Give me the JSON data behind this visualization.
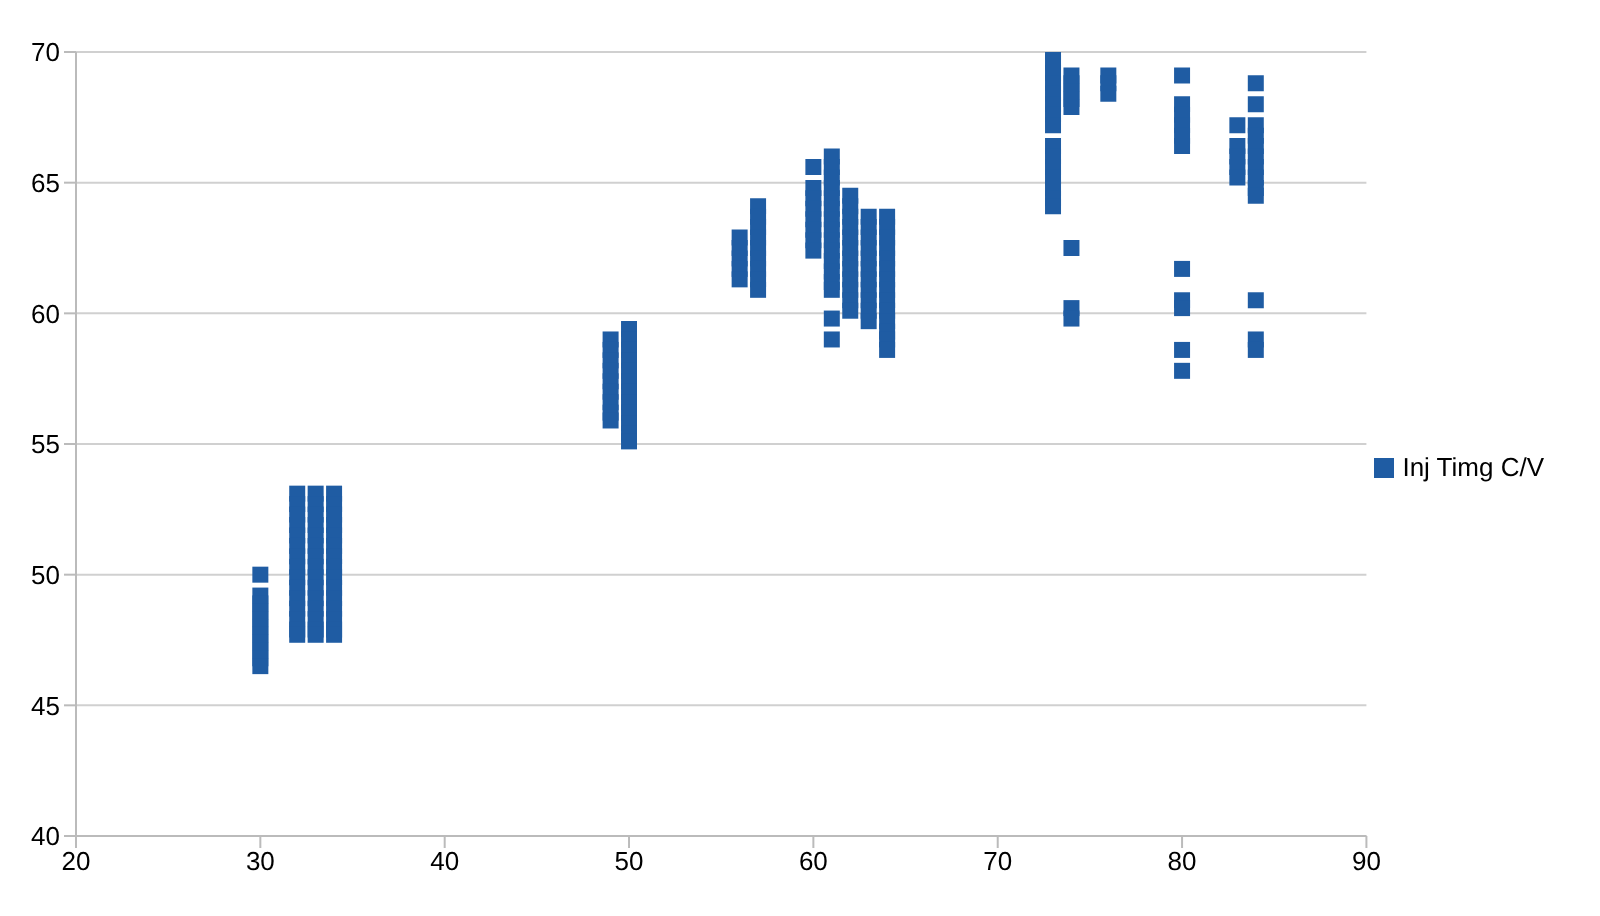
{
  "chart_data": {
    "type": "scatter",
    "xlim": [
      20,
      90
    ],
    "xticks": [
      20,
      30,
      40,
      50,
      60,
      70,
      80,
      90
    ],
    "ylim": [
      40,
      70
    ],
    "yticks": [
      40,
      45,
      50,
      55,
      60,
      65,
      70
    ],
    "grid": "y",
    "legend": "right",
    "marker": "square",
    "series": [
      {
        "name": "Inj Timg C/V",
        "color": "#1f5ca3",
        "x": [
          30,
          30,
          30,
          30,
          30,
          30,
          30,
          30,
          30,
          30,
          30,
          32,
          32,
          32,
          32,
          32,
          32,
          32,
          32,
          32,
          32,
          32,
          32,
          32,
          32,
          32,
          33,
          33,
          33,
          33,
          33,
          33,
          33,
          33,
          33,
          33,
          33,
          33,
          33,
          33,
          33,
          34,
          34,
          34,
          34,
          34,
          34,
          34,
          34,
          34,
          34,
          34,
          34,
          34,
          34,
          34,
          49,
          49,
          49,
          49,
          49,
          49,
          49,
          49,
          49,
          50,
          50,
          50,
          50,
          50,
          50,
          50,
          50,
          50,
          50,
          50,
          50,
          56,
          56,
          56,
          56,
          56,
          57,
          57,
          57,
          57,
          57,
          57,
          57,
          57,
          57,
          60,
          60,
          60,
          60,
          60,
          60,
          60,
          60,
          61,
          61,
          61,
          61,
          61,
          61,
          61,
          61,
          61,
          61,
          61,
          61,
          61,
          61,
          61,
          61,
          62,
          62,
          62,
          62,
          62,
          62,
          62,
          62,
          62,
          62,
          62,
          62,
          63,
          63,
          63,
          63,
          63,
          63,
          63,
          63,
          63,
          63,
          63,
          64,
          64,
          64,
          64,
          64,
          64,
          64,
          64,
          64,
          64,
          64,
          64,
          64,
          64,
          73,
          73,
          73,
          73,
          73,
          73,
          73,
          73,
          73,
          73,
          73,
          73,
          73,
          73,
          73,
          74,
          74,
          74,
          74,
          74,
          74,
          74,
          74,
          76,
          76,
          76,
          80,
          80,
          80,
          80,
          80,
          80,
          80,
          80,
          80,
          80,
          80,
          83,
          83,
          83,
          83,
          83,
          84,
          84,
          84,
          84,
          84,
          84,
          84,
          84,
          84,
          84,
          84,
          84,
          84
        ],
        "values": [
          50.0,
          49.2,
          48.9,
          48.6,
          48.3,
          48.0,
          47.7,
          47.4,
          47.1,
          46.8,
          46.5,
          53.1,
          52.7,
          52.3,
          51.9,
          51.5,
          51.1,
          50.7,
          50.3,
          49.9,
          49.5,
          49.1,
          48.7,
          48.3,
          47.9,
          47.7,
          53.1,
          52.7,
          52.3,
          51.9,
          51.5,
          51.1,
          50.7,
          50.3,
          49.9,
          49.5,
          49.1,
          48.7,
          48.3,
          47.9,
          47.7,
          53.1,
          52.7,
          52.3,
          51.9,
          51.5,
          51.1,
          50.7,
          50.3,
          49.9,
          49.5,
          49.1,
          48.7,
          48.3,
          47.9,
          47.7,
          59.0,
          58.6,
          58.2,
          57.8,
          57.4,
          57.0,
          56.6,
          56.2,
          55.9,
          59.4,
          59.0,
          58.6,
          58.2,
          57.8,
          57.4,
          57.0,
          56.6,
          56.2,
          55.8,
          55.4,
          55.1,
          62.9,
          62.5,
          62.1,
          61.7,
          61.3,
          64.1,
          63.7,
          63.3,
          62.9,
          62.5,
          62.1,
          61.7,
          61.3,
          60.9,
          65.6,
          64.8,
          64.4,
          64.0,
          63.6,
          63.2,
          62.8,
          62.4,
          66.0,
          65.6,
          65.2,
          64.8,
          64.4,
          64.0,
          63.6,
          63.2,
          62.8,
          62.4,
          62.0,
          61.6,
          61.2,
          60.9,
          59.8,
          59.0,
          64.5,
          64.1,
          63.7,
          63.3,
          62.9,
          62.5,
          62.1,
          61.7,
          61.3,
          60.9,
          60.5,
          60.1,
          63.7,
          63.3,
          62.9,
          62.5,
          62.1,
          61.7,
          61.3,
          60.9,
          60.5,
          60.1,
          59.7,
          63.7,
          63.3,
          62.9,
          62.5,
          62.1,
          61.7,
          61.3,
          60.9,
          60.5,
          60.1,
          59.7,
          59.3,
          59.0,
          58.6,
          70.0,
          69.6,
          69.2,
          68.8,
          68.4,
          68.0,
          67.6,
          67.2,
          66.4,
          66.0,
          65.6,
          65.2,
          64.8,
          64.4,
          64.1,
          69.1,
          68.8,
          68.5,
          68.2,
          67.9,
          62.5,
          60.2,
          59.8,
          69.1,
          68.8,
          68.4,
          69.1,
          68.0,
          67.6,
          67.2,
          66.8,
          66.4,
          61.7,
          60.5,
          60.2,
          58.6,
          57.8,
          67.2,
          66.4,
          66.0,
          65.6,
          65.2,
          68.8,
          68.0,
          67.2,
          66.8,
          66.4,
          66.0,
          65.6,
          65.2,
          64.8,
          64.5,
          60.5,
          59.0,
          58.6
        ]
      }
    ]
  }
}
